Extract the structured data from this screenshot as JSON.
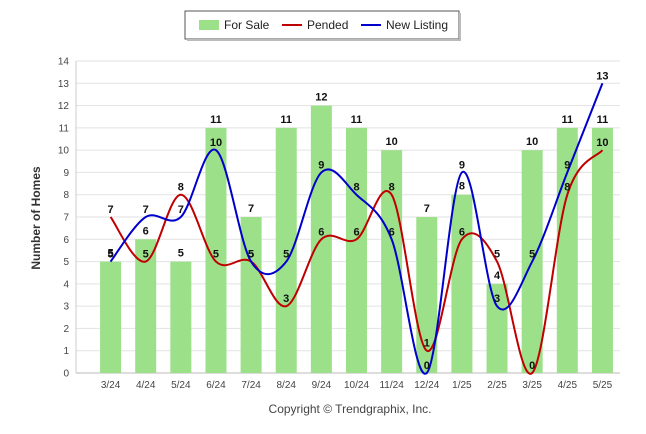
{
  "chart_data": {
    "type": "bar",
    "categories": [
      "3/24",
      "4/24",
      "5/24",
      "6/24",
      "7/24",
      "8/24",
      "9/24",
      "10/24",
      "11/24",
      "12/24",
      "1/25",
      "2/25",
      "3/25",
      "4/25",
      "5/25"
    ],
    "series": [
      {
        "name": "For Sale",
        "type": "bar",
        "color": "#9de08a",
        "values": [
          5,
          6,
          5,
          11,
          7,
          11,
          12,
          11,
          10,
          7,
          8,
          4,
          10,
          11,
          11
        ]
      },
      {
        "name": "Pended",
        "type": "line",
        "color": "#c00000",
        "values": [
          7,
          5,
          8,
          5,
          5,
          3,
          6,
          6,
          8,
          1,
          6,
          5,
          0,
          8,
          10
        ]
      },
      {
        "name": "New Listing",
        "type": "line",
        "color": "#0000cc",
        "values": [
          5,
          7,
          7,
          10,
          5,
          5,
          9,
          8,
          6,
          0,
          9,
          3,
          5,
          9,
          13
        ]
      }
    ],
    "ylabel": "Number of Homes",
    "xlabel": "",
    "ylim": [
      0,
      14
    ],
    "yticks": [
      0,
      1,
      2,
      3,
      4,
      5,
      6,
      7,
      8,
      9,
      10,
      11,
      12,
      13,
      14
    ],
    "grid": true,
    "legend_position": "top-center",
    "footer": "Copyright © Trendgraphix, Inc."
  }
}
